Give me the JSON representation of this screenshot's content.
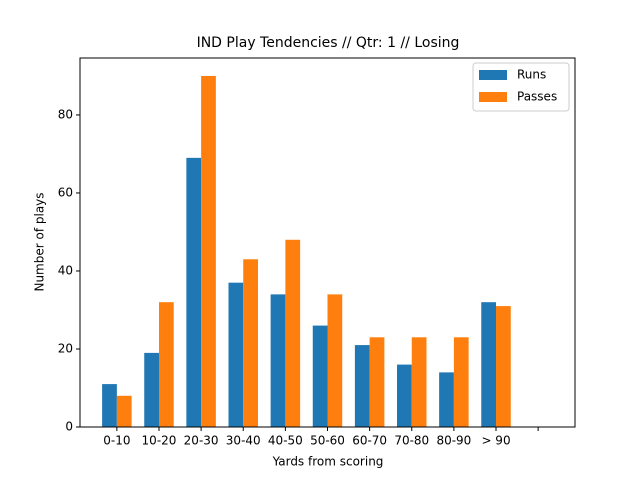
{
  "chart_data": {
    "type": "bar",
    "title": "IND Play Tendencies // Qtr: 1 // Losing",
    "x_label": "Yards from scoring",
    "y_label": "Number of plays",
    "categories": [
      "0-10",
      "10-20",
      "20-30",
      "30-40",
      "40-50",
      "50-60",
      "60-70",
      "70-80",
      "80-90",
      "> 90",
      null
    ],
    "series": [
      {
        "name": "Runs",
        "color": "#1f77b4",
        "values": [
          11,
          19,
          69,
          37,
          34,
          26,
          21,
          16,
          14,
          32,
          null
        ]
      },
      {
        "name": "Passes",
        "color": "#ff7f0e",
        "values": [
          8,
          32,
          90,
          43,
          48,
          34,
          23,
          23,
          23,
          31,
          null
        ]
      }
    ],
    "ylim": [
      0,
      94.6
    ],
    "yticks": [
      0,
      20,
      40,
      60,
      80
    ],
    "grid": false,
    "legend": "upper right"
  }
}
